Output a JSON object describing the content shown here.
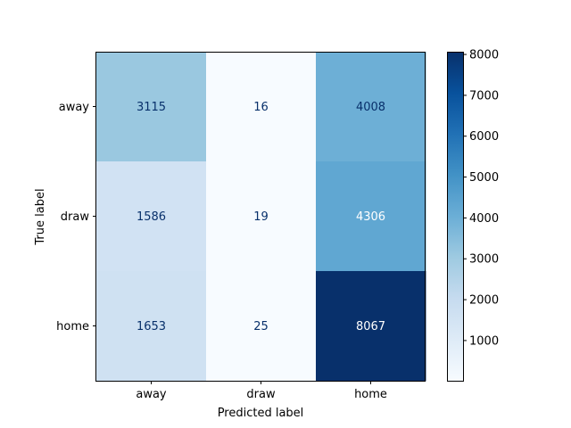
{
  "chart_data": {
    "type": "heatmap",
    "title": "",
    "xlabel": "Predicted label",
    "ylabel": "True label",
    "x_categories": [
      "away",
      "draw",
      "home"
    ],
    "y_categories": [
      "away",
      "draw",
      "home"
    ],
    "values": [
      [
        3115,
        16,
        4008
      ],
      [
        1586,
        19,
        4306
      ],
      [
        1653,
        25,
        8067
      ]
    ],
    "colormap": "Blues",
    "color_range": [
      16,
      8067
    ],
    "colorbar_ticks": [
      1000,
      2000,
      3000,
      4000,
      5000,
      6000,
      7000,
      8000
    ],
    "colorbar_tick_labels": [
      "1000",
      "2000",
      "3000",
      "4000",
      "5000",
      "6000",
      "7000",
      "8000"
    ],
    "grid": false
  }
}
